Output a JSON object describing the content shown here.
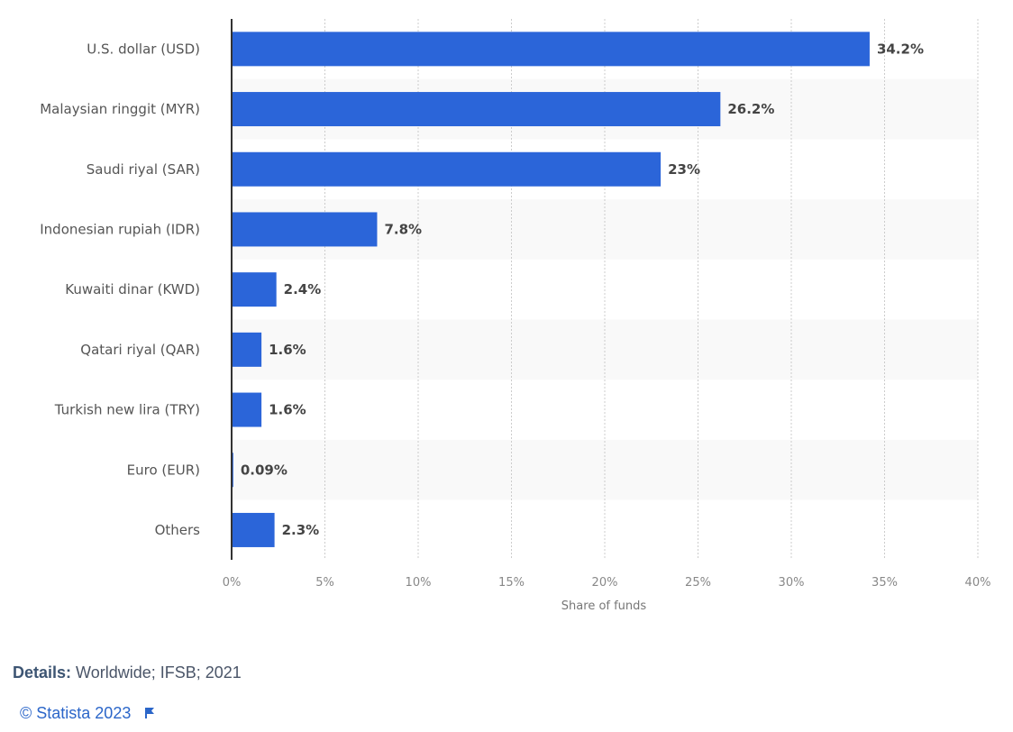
{
  "chart_data": {
    "type": "bar",
    "orientation": "horizontal",
    "categories": [
      "U.S. dollar (USD)",
      "Malaysian ringgit (MYR)",
      "Saudi riyal (SAR)",
      "Indonesian rupiah (IDR)",
      "Kuwaiti dinar (KWD)",
      "Qatari riyal (QAR)",
      "Turkish new lira (TRY)",
      "Euro (EUR)",
      "Others"
    ],
    "values": [
      34.2,
      26.2,
      23,
      7.8,
      2.4,
      1.6,
      1.6,
      0.09,
      2.3
    ],
    "value_labels": [
      "34.2%",
      "26.2%",
      "23%",
      "7.8%",
      "2.4%",
      "1.6%",
      "1.6%",
      "0.09%",
      "2.3%"
    ],
    "xlabel": "Share of funds",
    "ylabel": "",
    "xlim": [
      0,
      40
    ],
    "xticks": [
      0,
      5,
      10,
      15,
      20,
      25,
      30,
      35,
      40
    ],
    "xtick_labels": [
      "0%",
      "5%",
      "10%",
      "15%",
      "20%",
      "25%",
      "30%",
      "35%",
      "40%"
    ],
    "grid": true,
    "bar_color": "#2b65d9"
  },
  "footer": {
    "details_label": "Details:",
    "details_text": "Worldwide; IFSB; 2021",
    "copyright": "© Statista 2023"
  }
}
